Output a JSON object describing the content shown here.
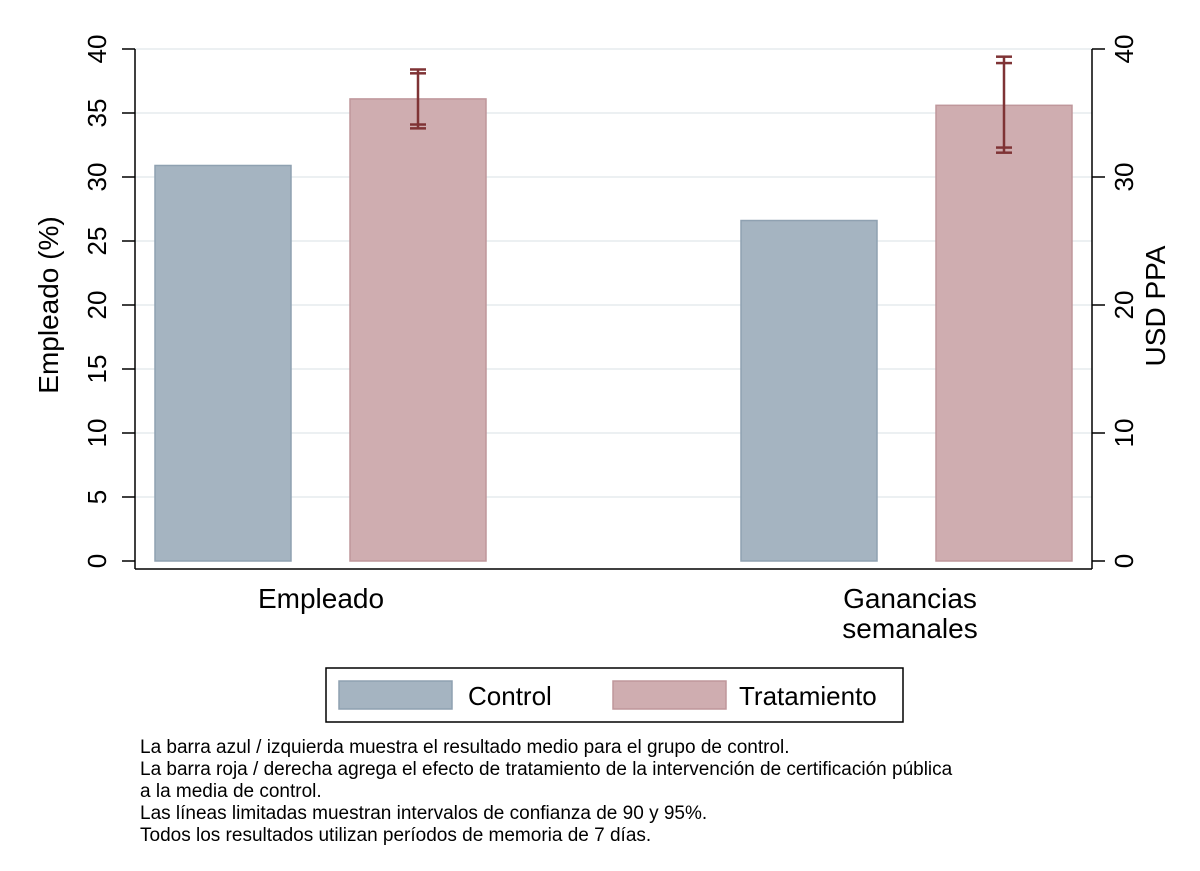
{
  "chart_data": {
    "type": "bar",
    "categories": [
      "Empleado",
      "Ganancias semanales"
    ],
    "category_tick_lines": [
      [
        "Empleado"
      ],
      [
        "Ganancias",
        "semanales"
      ]
    ],
    "series": [
      {
        "name": "Control",
        "values": [
          30.9,
          26.6
        ],
        "color": "#a5b4c1",
        "stroke": "#8fa1b1"
      },
      {
        "name": "Tratamiento",
        "values": [
          36.1,
          35.6
        ],
        "color": "#cfadb0",
        "stroke": "#bf979b"
      }
    ],
    "error_bars": [
      {
        "category": "Empleado",
        "series": "Tratamiento",
        "ci90": [
          34.1,
          38.1
        ],
        "ci95": [
          33.8,
          38.4
        ]
      },
      {
        "category": "Ganancias semanales",
        "series": "Tratamiento",
        "ci90": [
          32.3,
          38.9
        ],
        "ci95": [
          31.9,
          39.4
        ]
      }
    ],
    "error_bar_color": "#7f3335",
    "ylabel_left": "Empleado (%)",
    "ylabel_right": "USD PPA",
    "ylim_left": [
      0,
      40
    ],
    "ylim_right": [
      0,
      40
    ],
    "yticks_left": [
      0,
      5,
      10,
      15,
      20,
      25,
      30,
      35,
      40
    ],
    "yticks_right": [
      0,
      10,
      20,
      30,
      40
    ],
    "grid": true,
    "legend_position": "bottom"
  },
  "notes": [
    "La barra azul / izquierda muestra el resultado medio para el grupo de control.",
    "La barra roja / derecha agrega el efecto de tratamiento de la intervención de certificación pública",
    "a la media de control.",
    "Las líneas limitadas muestran intervalos de confianza de 90 y 95%.",
    "Todos los resultados utilizan períodos de memoria de 7 días."
  ]
}
